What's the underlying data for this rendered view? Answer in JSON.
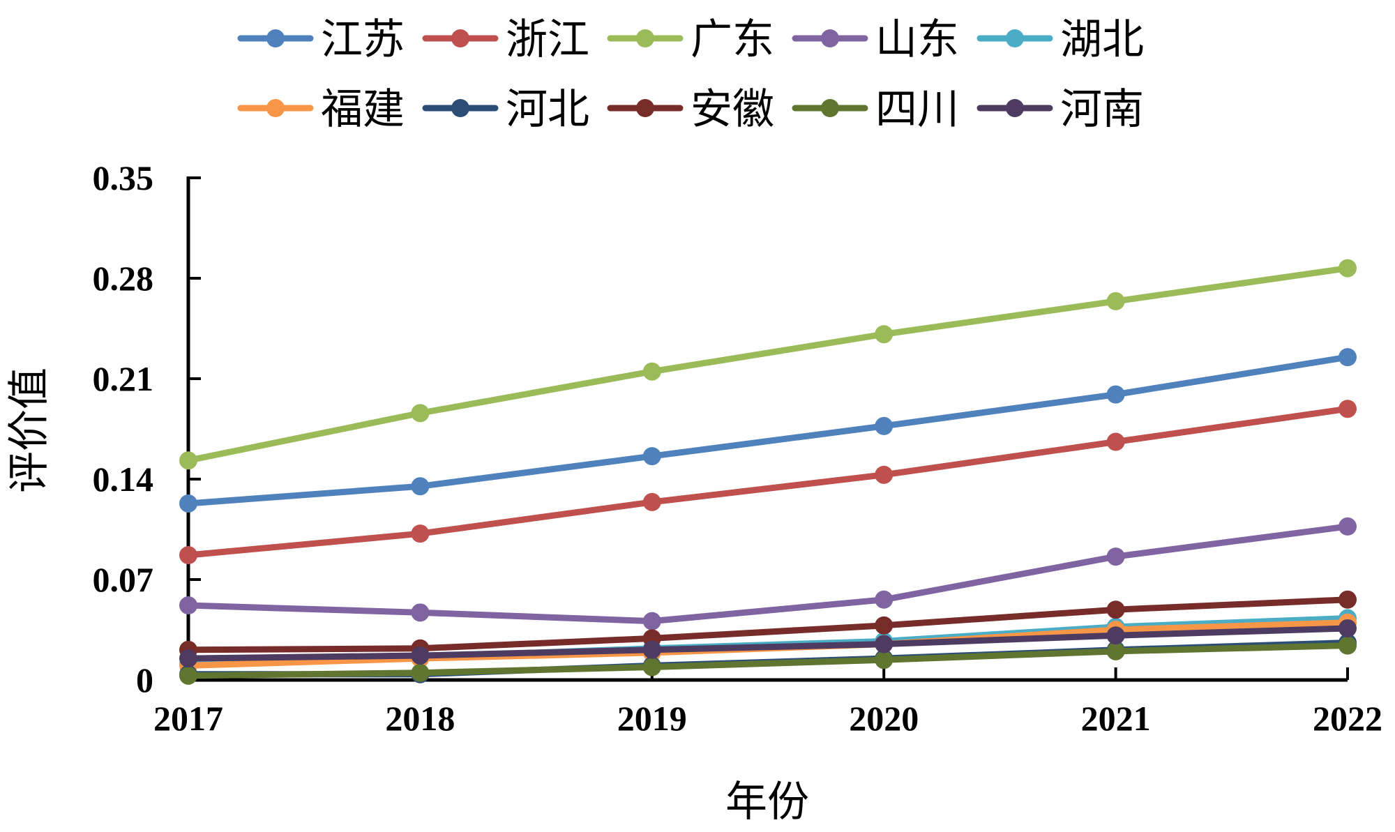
{
  "chart_data": {
    "type": "line",
    "title": "",
    "xlabel": "年份",
    "ylabel": "评价值",
    "x": [
      "2017",
      "2018",
      "2019",
      "2020",
      "2021",
      "2022"
    ],
    "y_ticks": [
      "0",
      "0.07",
      "0.14",
      "0.21",
      "0.28",
      "0.35"
    ],
    "ylim": [
      0,
      0.35
    ],
    "grid": false,
    "legend_position": "top",
    "series": [
      {
        "name": "江苏",
        "color": "#4F81BD",
        "values": [
          0.123,
          0.135,
          0.156,
          0.177,
          0.199,
          0.225
        ]
      },
      {
        "name": "浙江",
        "color": "#C0504D",
        "values": [
          0.087,
          0.102,
          0.124,
          0.143,
          0.166,
          0.189
        ]
      },
      {
        "name": "广东",
        "color": "#9BBB59",
        "values": [
          0.153,
          0.186,
          0.215,
          0.241,
          0.264,
          0.287
        ]
      },
      {
        "name": "山东",
        "color": "#8064A2",
        "values": [
          0.052,
          0.047,
          0.041,
          0.056,
          0.086,
          0.107
        ]
      },
      {
        "name": "湖北",
        "color": "#4BACC6",
        "values": [
          0.011,
          0.016,
          0.022,
          0.027,
          0.037,
          0.043
        ]
      },
      {
        "name": "福建",
        "color": "#F79646",
        "values": [
          0.01,
          0.015,
          0.019,
          0.025,
          0.035,
          0.04
        ]
      },
      {
        "name": "河北",
        "color": "#2C4D75",
        "values": [
          0.004,
          0.004,
          0.01,
          0.015,
          0.021,
          0.026
        ]
      },
      {
        "name": "安徽",
        "color": "#772C2A",
        "values": [
          0.021,
          0.022,
          0.029,
          0.038,
          0.049,
          0.056
        ]
      },
      {
        "name": "四川",
        "color": "#5F7530",
        "values": [
          0.003,
          0.005,
          0.009,
          0.014,
          0.02,
          0.024
        ]
      },
      {
        "name": "河南",
        "color": "#4D3B62",
        "values": [
          0.015,
          0.017,
          0.021,
          0.025,
          0.031,
          0.036
        ]
      }
    ]
  }
}
